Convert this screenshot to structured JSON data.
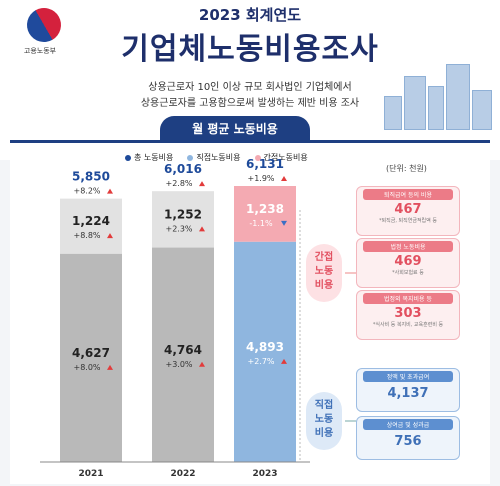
{
  "header": {
    "ministry": "고용노동부",
    "year_title": "2023 회계연도",
    "main_title": "기업체노동비용조사",
    "subtitle_line1": "상용근로자 10인 이상 규모 회사법인 기업체에서",
    "subtitle_line2": "상용근로자를 고용함으로써 발생하는 제반 비용 조사"
  },
  "section_title": "월 평균 노동비용",
  "unit": "(단위: 천원)",
  "colors": {
    "total": "#1e4a9a",
    "direct": "#8fb6df",
    "indirect": "#f4aab2",
    "accent_red": "#e23b3b",
    "down_blue": "#3a6fc4"
  },
  "chart_data": {
    "type": "bar",
    "stacked": true,
    "categories": [
      "2021",
      "2022",
      "2023"
    ],
    "series": [
      {
        "name": "직접노동비용",
        "values": [
          4627,
          4764,
          4893
        ],
        "growth": [
          "+8.0%",
          "+3.0%",
          "+2.7%"
        ]
      },
      {
        "name": "간접노동비용",
        "values": [
          1224,
          1252,
          1238
        ],
        "growth": [
          "+8.8%",
          "+2.3%",
          "-1.1%"
        ]
      }
    ],
    "totals": {
      "name": "총 노동비용",
      "labels": [
        "5,850",
        "6,016",
        "6,131"
      ],
      "growth": [
        "+8.2%",
        "+2.8%",
        "+1.9%"
      ]
    },
    "direct_labels": [
      "4,627",
      "4,764",
      "4,893"
    ],
    "indirect_labels": [
      "1,224",
      "1,252",
      "1,238"
    ],
    "ylim": [
      0,
      6200
    ]
  },
  "callouts": {
    "indirect": "간접노동비용",
    "direct": "직접노동비용"
  },
  "indirect_breakdown": [
    {
      "title": "퇴직급여 등의 비용",
      "value": "467",
      "note": "*퇴직금, 퇴직연금적립액 등"
    },
    {
      "title": "법정 노동비용",
      "value": "469",
      "note": "*사회보험료 등"
    },
    {
      "title": "법정외 복지비용 등",
      "value": "303",
      "note": "*식사비 등 복지비, 교육훈련비 등"
    }
  ],
  "direct_breakdown": [
    {
      "title": "정액 및 초과급여",
      "value": "4,137"
    },
    {
      "title": "상여금 및 성과급",
      "value": "756"
    }
  ]
}
